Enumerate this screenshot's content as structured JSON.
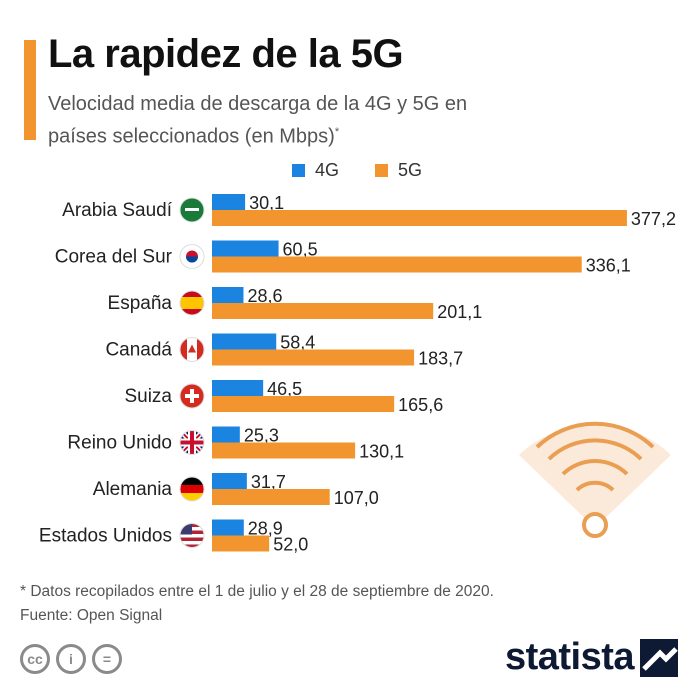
{
  "header": {
    "title": "La rapidez de la 5G",
    "subtitle": "Velocidad media de descarga de la 4G y 5G en países seleccionados (en Mbps)",
    "subtitle_mark": "*"
  },
  "colors": {
    "accent": "#f2952f",
    "series_4g": "#1b84e0",
    "series_5g": "#f2952f"
  },
  "chart_data": {
    "type": "bar",
    "orientation": "horizontal",
    "title": "La rapidez de la 5G",
    "xlabel": "",
    "ylabel": "",
    "xlim": [
      0,
      400
    ],
    "categories": [
      "Arabia Saudí",
      "Corea del Sur",
      "España",
      "Canadá",
      "Suiza",
      "Reino Unido",
      "Alemania",
      "Estados Unidos"
    ],
    "series": [
      {
        "name": "4G",
        "values": [
          30.1,
          60.5,
          28.6,
          58.4,
          46.5,
          25.3,
          31.7,
          28.9
        ],
        "labels": [
          "30,1",
          "60,5",
          "28,6",
          "58,4",
          "46,5",
          "25,3",
          "31,7",
          "28,9"
        ]
      },
      {
        "name": "5G",
        "values": [
          377.2,
          336.1,
          201.1,
          183.7,
          165.6,
          130.1,
          107.0,
          52.0
        ],
        "labels": [
          "377,2",
          "336,1",
          "201,1",
          "183,7",
          "165,6",
          "130,1",
          "107,0",
          "52,0"
        ]
      }
    ],
    "flag_icons": [
      "saudi-flag-icon",
      "south-korea-flag-icon",
      "spain-flag-icon",
      "canada-flag-icon",
      "switzerland-flag-icon",
      "uk-flag-icon",
      "germany-flag-icon",
      "usa-flag-icon"
    ],
    "legend_position": "top"
  },
  "footer": {
    "note": "* Datos recopilados entre el 1 de julio y el 28 de septiembre de 2020.",
    "source": "Fuente: Open Signal",
    "brand": "statista"
  }
}
